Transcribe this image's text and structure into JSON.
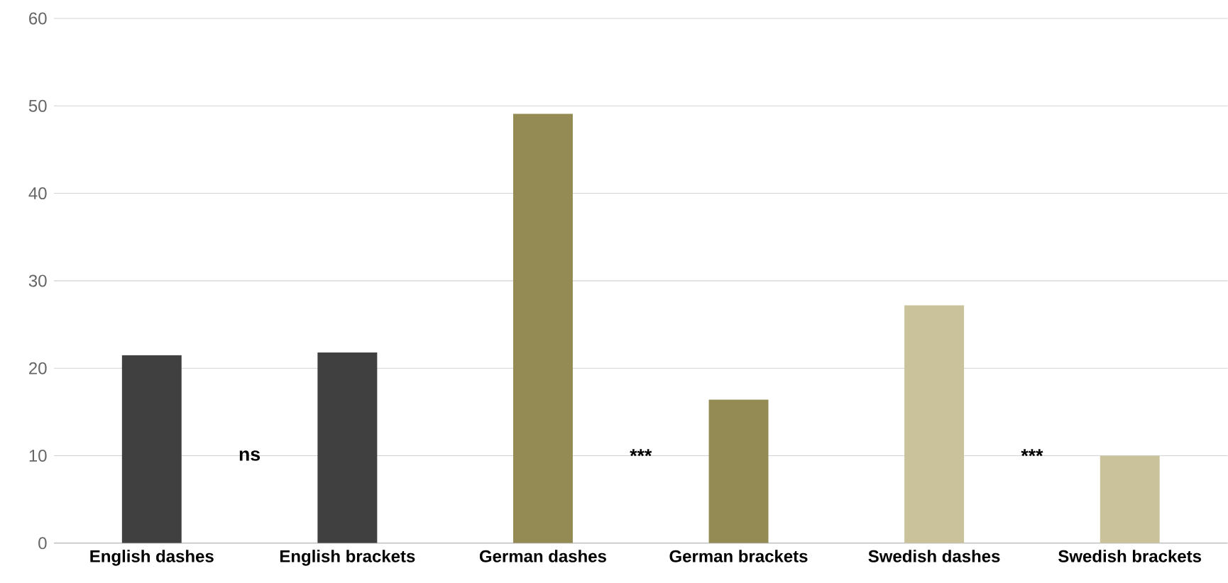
{
  "chart_data": {
    "type": "bar",
    "categories": [
      "English dashes",
      "English brackets",
      "German dashes",
      "German brackets",
      "Swedish dashes",
      "Swedish brackets"
    ],
    "values": [
      21.5,
      21.8,
      49.1,
      16.4,
      27.2,
      10
    ],
    "colors": [
      "#404040",
      "#404040",
      "#948b54",
      "#948b54",
      "#c9c29a",
      "#c9c29a"
    ],
    "ylim": [
      0,
      60
    ],
    "yticks": [
      0,
      10,
      20,
      30,
      40,
      50,
      60
    ],
    "grid": "y",
    "annotations": [
      "ns",
      "***",
      "***"
    ]
  }
}
